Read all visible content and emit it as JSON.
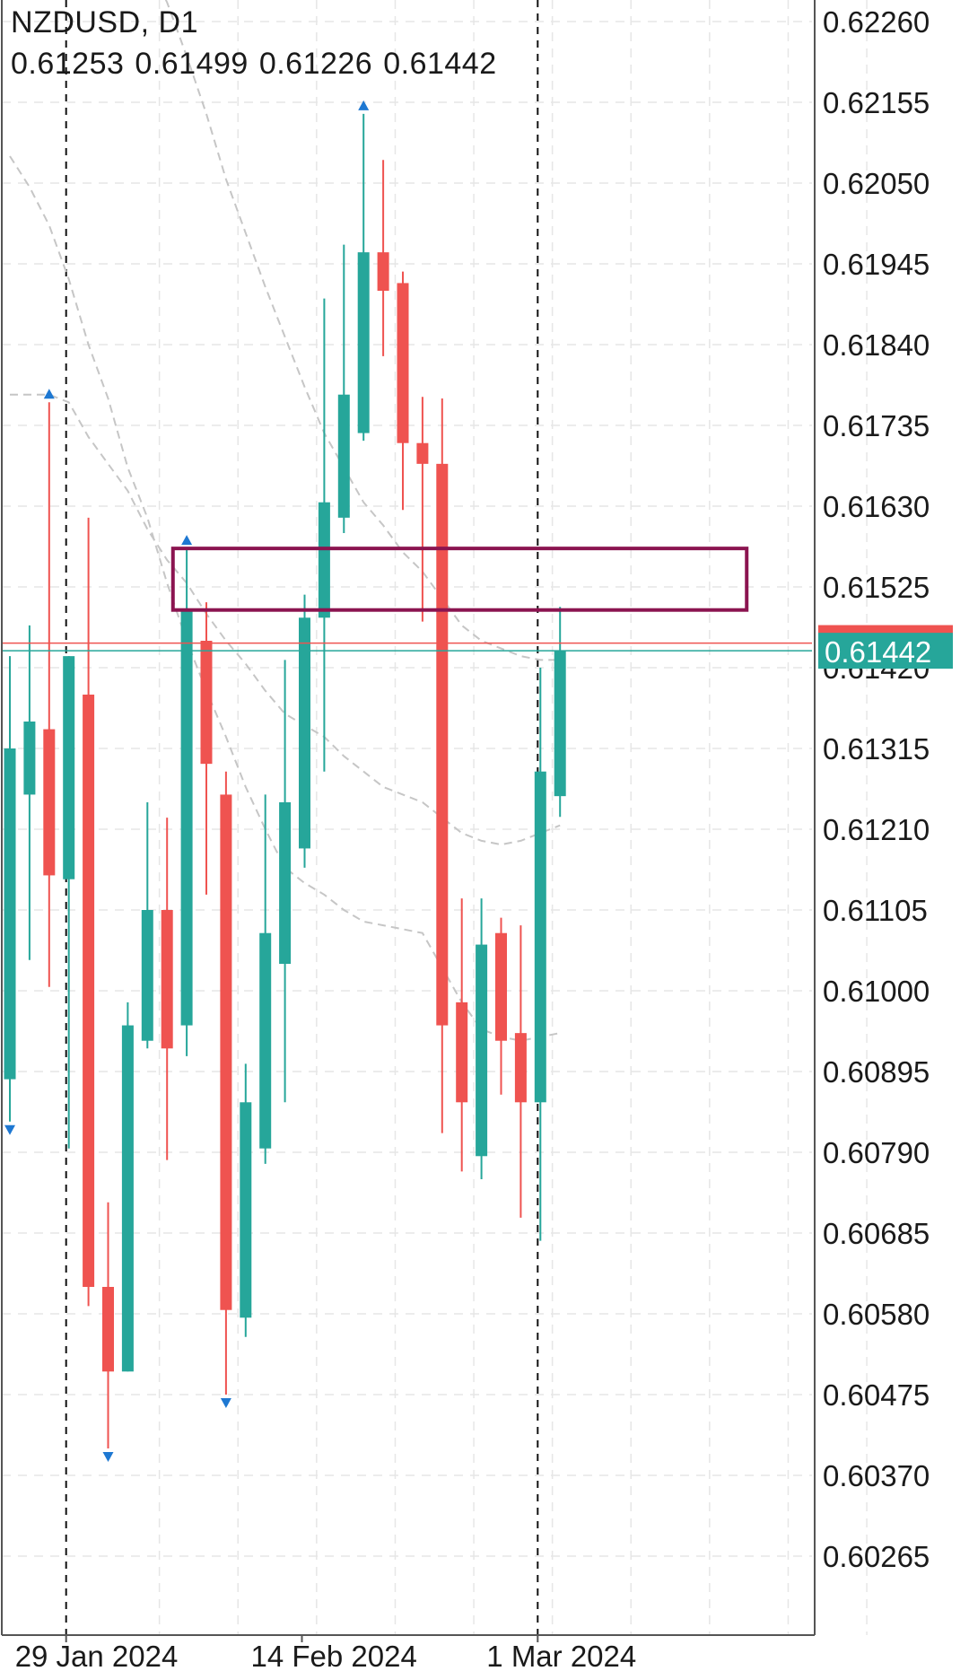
{
  "header": {
    "symbol": "NZDUSD",
    "timeframe": "D1",
    "title": "NZDUSD, D1",
    "ohlc": [
      "0.61253",
      "0.61499",
      "0.61226",
      "0.61442"
    ]
  },
  "chart_data": {
    "type": "candlestick",
    "title": "NZDUSD, D1",
    "xlabel": "",
    "ylabel": "",
    "ylim": [
      0.6016,
      0.6232
    ],
    "y_ticks": [
      0.60265,
      0.6037,
      0.60475,
      0.6058,
      0.60685,
      0.6079,
      0.60895,
      0.61,
      0.61105,
      0.6121,
      0.61315,
      0.6142,
      0.61525,
      0.6163,
      0.61735,
      0.6184,
      0.61945,
      0.6205,
      0.62155,
      0.6226
    ],
    "y_tick_labels": [
      "0.60265",
      "0.60370",
      "0.60475",
      "0.60580",
      "0.60685",
      "0.60790",
      "0.60895",
      "0.61000",
      "0.61105",
      "0.61210",
      "0.61315",
      "0.61420",
      "0.61525",
      "0.61630",
      "0.61735",
      "0.61840",
      "0.61945",
      "0.62050",
      "0.62155",
      "0.62260"
    ],
    "x_labels": [
      {
        "index": 3,
        "text": "29 Jan 2024"
      },
      {
        "index": 15,
        "text": "14 Feb 2024"
      },
      {
        "index": 27,
        "text": "1 Mar 2024"
      }
    ],
    "period_separators": [
      3,
      27
    ],
    "grid": true,
    "up_color": "#26a69a",
    "down_color": "#ef5350",
    "candles": [
      {
        "o": 0.60885,
        "h": 0.61435,
        "l": 0.6083,
        "c": 0.61315
      },
      {
        "o": 0.61255,
        "h": 0.61475,
        "l": 0.6104,
        "c": 0.6135
      },
      {
        "o": 0.6134,
        "h": 0.61765,
        "l": 0.61005,
        "c": 0.6115
      },
      {
        "o": 0.61145,
        "h": 0.61435,
        "l": 0.60795,
        "c": 0.61435
      },
      {
        "o": 0.61385,
        "h": 0.61615,
        "l": 0.6059,
        "c": 0.60615
      },
      {
        "o": 0.60615,
        "h": 0.60725,
        "l": 0.60405,
        "c": 0.60505
      },
      {
        "o": 0.60505,
        "h": 0.60985,
        "l": 0.60505,
        "c": 0.60955
      },
      {
        "o": 0.60935,
        "h": 0.61245,
        "l": 0.60925,
        "c": 0.61105
      },
      {
        "o": 0.61105,
        "h": 0.61225,
        "l": 0.6078,
        "c": 0.60925
      },
      {
        "o": 0.60955,
        "h": 0.61575,
        "l": 0.60915,
        "c": 0.61495
      },
      {
        "o": 0.61455,
        "h": 0.61505,
        "l": 0.61125,
        "c": 0.61295
      },
      {
        "o": 0.61255,
        "h": 0.61285,
        "l": 0.60475,
        "c": 0.60585
      },
      {
        "o": 0.60575,
        "h": 0.60905,
        "l": 0.6055,
        "c": 0.60855
      },
      {
        "o": 0.60795,
        "h": 0.61255,
        "l": 0.60775,
        "c": 0.61075
      },
      {
        "o": 0.61035,
        "h": 0.6143,
        "l": 0.60855,
        "c": 0.61245
      },
      {
        "o": 0.61185,
        "h": 0.61515,
        "l": 0.6116,
        "c": 0.61485
      },
      {
        "o": 0.61485,
        "h": 0.619,
        "l": 0.61285,
        "c": 0.61635
      },
      {
        "o": 0.61615,
        "h": 0.6197,
        "l": 0.61595,
        "c": 0.61775
      },
      {
        "o": 0.61725,
        "h": 0.6214,
        "l": 0.61715,
        "c": 0.6196
      },
      {
        "o": 0.6196,
        "h": 0.6208,
        "l": 0.61825,
        "c": 0.6191
      },
      {
        "o": 0.6192,
        "h": 0.61935,
        "l": 0.61625,
        "c": 0.61712
      },
      {
        "o": 0.61712,
        "h": 0.61772,
        "l": 0.6148,
        "c": 0.61685
      },
      {
        "o": 0.61685,
        "h": 0.6177,
        "l": 0.60815,
        "c": 0.60955
      },
      {
        "o": 0.60985,
        "h": 0.6112,
        "l": 0.60765,
        "c": 0.60855
      },
      {
        "o": 0.60785,
        "h": 0.6112,
        "l": 0.60755,
        "c": 0.6106
      },
      {
        "o": 0.61075,
        "h": 0.61095,
        "l": 0.60865,
        "c": 0.60935
      },
      {
        "o": 0.60945,
        "h": 0.61085,
        "l": 0.60705,
        "c": 0.60855
      },
      {
        "o": 0.60855,
        "h": 0.6142,
        "l": 0.60675,
        "c": 0.61285
      },
      {
        "o": 0.61253,
        "h": 0.61499,
        "l": 0.61226,
        "c": 0.61442
      }
    ],
    "signal_arrows": [
      {
        "index": 0,
        "direction": "down"
      },
      {
        "index": 2,
        "direction": "up"
      },
      {
        "index": 5,
        "direction": "down"
      },
      {
        "index": 9,
        "direction": "up"
      },
      {
        "index": 11,
        "direction": "down"
      },
      {
        "index": 18,
        "direction": "up"
      }
    ],
    "moving_averages": [
      {
        "values": [
          0.62085,
          0.62045,
          0.61995,
          0.61925,
          0.6184,
          0.6177,
          0.6168,
          0.61615,
          0.6153,
          0.61455,
          0.6139,
          0.6133,
          0.61265,
          0.6121,
          0.6116,
          0.6114,
          0.61125,
          0.61105,
          0.6109,
          0.61085,
          0.6108,
          0.61075,
          0.6103,
          0.60985,
          0.6095,
          0.6094,
          0.60935,
          0.6094,
          0.60945
        ]
      },
      {
        "values": [
          0.61775,
          0.61775,
          0.61775,
          0.61765,
          0.6172,
          0.61685,
          0.6165,
          0.616,
          0.6156,
          0.6153,
          0.6149,
          0.61455,
          0.61425,
          0.6139,
          0.6136,
          0.61345,
          0.6133,
          0.61305,
          0.61285,
          0.61265,
          0.61255,
          0.61245,
          0.61225,
          0.61205,
          0.61195,
          0.6119,
          0.61195,
          0.61205,
          0.61215
        ]
      },
      {
        "values": [
          null,
          null,
          null,
          null,
          null,
          null,
          null,
          0.62335,
          0.62285,
          0.62215,
          0.6214,
          0.62055,
          0.61985,
          0.61915,
          0.6185,
          0.61785,
          0.61725,
          0.6168,
          0.61635,
          0.61605,
          0.6157,
          0.61545,
          0.6151,
          0.61475,
          0.61455,
          0.61445,
          0.61435,
          0.6143,
          0.6143
        ]
      }
    ],
    "zone": {
      "top": 0.61575,
      "bottom": 0.61495,
      "from_index": 8.3,
      "to_index": 37.5,
      "color": "#8b1450"
    },
    "bid_price": {
      "value": 0.61442,
      "label": "0.61442",
      "color": "#26a69a"
    },
    "ask_price": {
      "value": 0.61452,
      "color": "#ef5350"
    }
  }
}
